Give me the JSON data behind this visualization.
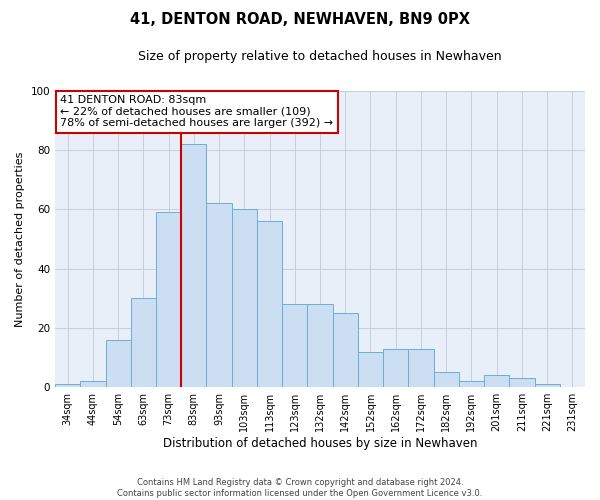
{
  "title": "41, DENTON ROAD, NEWHAVEN, BN9 0PX",
  "subtitle": "Size of property relative to detached houses in Newhaven",
  "xlabel": "Distribution of detached houses by size in Newhaven",
  "ylabel": "Number of detached properties",
  "bar_labels": [
    "34sqm",
    "44sqm",
    "54sqm",
    "63sqm",
    "73sqm",
    "83sqm",
    "93sqm",
    "103sqm",
    "113sqm",
    "123sqm",
    "132sqm",
    "142sqm",
    "152sqm",
    "162sqm",
    "172sqm",
    "182sqm",
    "192sqm",
    "201sqm",
    "211sqm",
    "221sqm",
    "231sqm"
  ],
  "bar_values": [
    1,
    2,
    16,
    30,
    59,
    82,
    62,
    60,
    56,
    28,
    28,
    25,
    12,
    13,
    13,
    5,
    2,
    4,
    3,
    1,
    0
  ],
  "bar_color": "#ccdff2",
  "bar_edge_color": "#6aaed6",
  "vline_index": 5,
  "vline_color": "#cc0000",
  "annotation_title": "41 DENTON ROAD: 83sqm",
  "annotation_line1": "← 22% of detached houses are smaller (109)",
  "annotation_line2": "78% of semi-detached houses are larger (392) →",
  "annotation_box_facecolor": "#ffffff",
  "annotation_box_edgecolor": "#cc0000",
  "ylim": [
    0,
    100
  ],
  "plot_bg_color": "#e8eff8",
  "background_color": "#ffffff",
  "grid_color": "#c0ccd8",
  "footer_line1": "Contains HM Land Registry data © Crown copyright and database right 2024.",
  "footer_line2": "Contains public sector information licensed under the Open Government Licence v3.0."
}
